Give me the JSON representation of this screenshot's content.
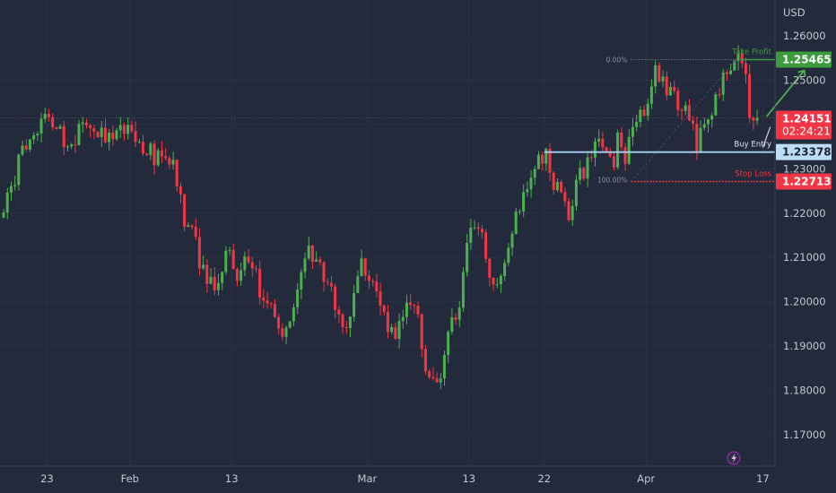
{
  "chart_data": {
    "type": "candlestick",
    "currency": "USD",
    "y_ticks": [
      "1.26000",
      "1.25000",
      "1.24000",
      "1.23000",
      "1.22000",
      "1.21000",
      "1.20000",
      "1.19000",
      "1.18000",
      "1.17000"
    ],
    "y_tick_values": [
      1.26,
      1.25,
      1.24,
      1.23,
      1.22,
      1.21,
      1.2,
      1.19,
      1.18,
      1.17
    ],
    "ylim": [
      1.1645,
      1.2665
    ],
    "x_labels": [
      "23",
      "Feb",
      "13",
      "Mar",
      "13",
      "22",
      "Apr",
      "17"
    ],
    "x_label_bars": [
      12,
      34,
      61,
      97,
      124,
      144,
      171,
      202
    ],
    "bar_count": 205,
    "colors": {
      "up": "#4caf50",
      "down": "#f23645",
      "take_profit": "#3d9a3d",
      "current": "#f23645",
      "buy_entry": "#a7d0f5",
      "stop_loss": "#f23645"
    },
    "levels": {
      "take_profit": {
        "label": "Take Profit",
        "price_label": "1.25465",
        "value": 1.25465
      },
      "current": {
        "price_label": "1.24151",
        "countdown": "02:24:21",
        "value": 1.24151
      },
      "buy_entry": {
        "label": "Buy Entry",
        "price_label": "1.23378",
        "value": 1.23378
      },
      "stop_loss": {
        "label": "Stop Loss",
        "price_label": "1.22713",
        "value": 1.22713
      }
    },
    "fib": {
      "top_label": "0.00%",
      "bottom_label": "100.00%"
    },
    "anchors": [
      [
        0,
        1.221
      ],
      [
        4,
        1.231
      ],
      [
        8,
        1.239
      ],
      [
        12,
        1.241
      ],
      [
        14,
        1.24
      ],
      [
        17,
        1.233
      ],
      [
        20,
        1.238
      ],
      [
        24,
        1.24
      ],
      [
        27,
        1.236
      ],
      [
        30,
        1.238
      ],
      [
        33,
        1.239
      ],
      [
        36,
        1.236
      ],
      [
        40,
        1.233
      ],
      [
        43,
        1.234
      ],
      [
        45,
        1.231
      ],
      [
        48,
        1.219
      ],
      [
        51,
        1.213
      ],
      [
        54,
        1.203
      ],
      [
        57,
        1.205
      ],
      [
        60,
        1.212
      ],
      [
        62,
        1.203
      ],
      [
        64,
        1.209
      ],
      [
        66,
        1.208
      ],
      [
        69,
        1.2
      ],
      [
        72,
        1.196
      ],
      [
        75,
        1.192
      ],
      [
        78,
        1.203
      ],
      [
        81,
        1.211
      ],
      [
        84,
        1.208
      ],
      [
        88,
        1.199
      ],
      [
        91,
        1.195
      ],
      [
        95,
        1.208
      ],
      [
        98,
        1.203
      ],
      [
        101,
        1.196
      ],
      [
        104,
        1.193
      ],
      [
        108,
        1.201
      ],
      [
        110,
        1.198
      ],
      [
        112,
        1.183
      ],
      [
        115,
        1.181
      ],
      [
        118,
        1.192
      ],
      [
        121,
        1.2
      ],
      [
        123,
        1.212
      ],
      [
        125,
        1.218
      ],
      [
        127,
        1.216
      ],
      [
        129,
        1.206
      ],
      [
        131,
        1.205
      ],
      [
        134,
        1.214
      ],
      [
        137,
        1.222
      ],
      [
        140,
        1.227
      ],
      [
        142,
        1.232
      ],
      [
        144,
        1.233
      ],
      [
        146,
        1.224
      ],
      [
        148,
        1.227
      ],
      [
        150,
        1.22
      ],
      [
        153,
        1.228
      ],
      [
        156,
        1.233
      ],
      [
        158,
        1.236
      ],
      [
        160,
        1.234
      ],
      [
        162,
        1.231
      ],
      [
        163,
        1.236
      ],
      [
        165,
        1.232
      ],
      [
        167,
        1.24
      ],
      [
        170,
        1.244
      ],
      [
        173,
        1.252
      ],
      [
        176,
        1.248
      ],
      [
        179,
        1.245
      ],
      [
        182,
        1.242
      ],
      [
        184,
        1.236
      ],
      [
        187,
        1.242
      ],
      [
        189,
        1.246
      ],
      [
        192,
        1.252
      ],
      [
        195,
        1.2545
      ],
      [
        197,
        1.25
      ],
      [
        198,
        1.243
      ],
      [
        199,
        1.24
      ],
      [
        200,
        1.2415
      ]
    ],
    "markers": [
      "lightning-icon"
    ]
  }
}
